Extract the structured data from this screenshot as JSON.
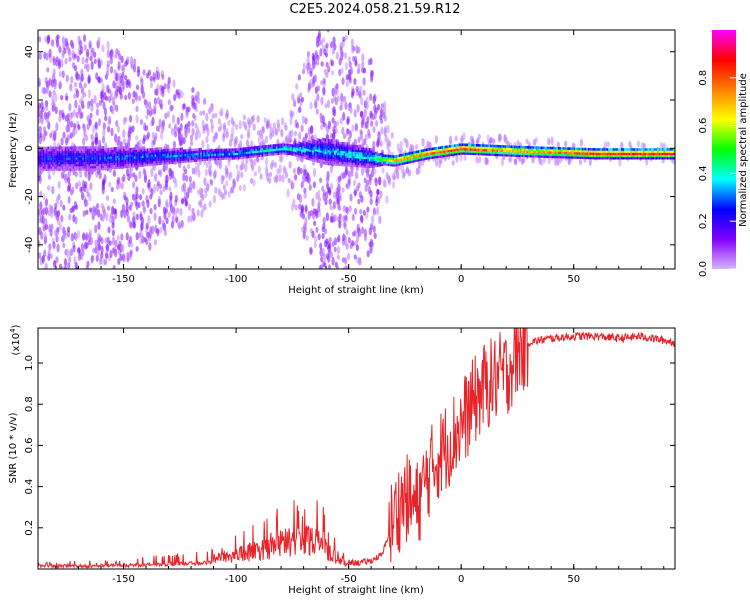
{
  "figure": {
    "title": "C2E5.2024.058.21.59.R12"
  },
  "chart_data": [
    {
      "type": "heatmap",
      "panel": "top",
      "xlabel": "Height of straight line (km)",
      "ylabel": "Frequency (Hz)",
      "xlim": [
        -188,
        95
      ],
      "ylim": [
        -50,
        49
      ],
      "xticks": [
        -150,
        -100,
        -50,
        0,
        50
      ],
      "yticks": [
        -40,
        -20,
        0,
        20,
        40
      ],
      "colorbar": {
        "label": "Normalized spectral amplitude",
        "range": [
          0.0,
          1.0
        ],
        "ticks": [
          0.0,
          0.2,
          0.4,
          0.6,
          0.8
        ],
        "colormap": [
          "#d9b3ff",
          "#8000ff",
          "#0000ff",
          "#00ffff",
          "#00ff00",
          "#ffff00",
          "#ff8000",
          "#ff0000",
          "#ff00ff"
        ]
      },
      "ridge": [
        {
          "x": -188,
          "freq": -4,
          "amplitude": 0.25,
          "spread_hz": 40
        },
        {
          "x": -160,
          "freq": -4,
          "amplitude": 0.28,
          "spread_hz": 38
        },
        {
          "x": -130,
          "freq": -3,
          "amplitude": 0.32,
          "spread_hz": 25
        },
        {
          "x": -100,
          "freq": -2,
          "amplitude": 0.35,
          "spread_hz": 12
        },
        {
          "x": -80,
          "freq": 0,
          "amplitude": 0.45,
          "spread_hz": 10
        },
        {
          "x": -60,
          "freq": -1,
          "amplitude": 0.35,
          "spread_hz": 45
        },
        {
          "x": -40,
          "freq": -4,
          "amplitude": 0.42,
          "spread_hz": 30
        },
        {
          "x": -30,
          "freq": -5,
          "amplitude": 0.75,
          "spread_hz": 6
        },
        {
          "x": -15,
          "freq": -2,
          "amplitude": 0.85,
          "spread_hz": 5
        },
        {
          "x": 0,
          "freq": 0,
          "amplitude": 0.9,
          "spread_hz": 4
        },
        {
          "x": 25,
          "freq": -1,
          "amplitude": 0.75,
          "spread_hz": 4
        },
        {
          "x": 60,
          "freq": -2,
          "amplitude": 0.9,
          "spread_hz": 3
        },
        {
          "x": 95,
          "freq": -2,
          "amplitude": 0.95,
          "spread_hz": 3
        }
      ]
    },
    {
      "type": "line",
      "panel": "bottom",
      "xlabel": "Height of straight line (km)",
      "ylabel": "SNR (10 * v/v)",
      "yscale_label": "(x10",
      "yscale_exp": "4",
      "yscale_close": ")",
      "xlim": [
        -188,
        95
      ],
      "ylim": [
        0.0,
        1.17
      ],
      "xticks": [
        -150,
        -100,
        -50,
        0,
        50
      ],
      "yticks": [
        0.2,
        0.4,
        0.6,
        0.8,
        1.0
      ],
      "color": "#e8242a",
      "series": [
        {
          "x": [
            -188,
            -170,
            -150,
            -140,
            -130,
            -120,
            -110,
            -100,
            -90,
            -80,
            -75,
            -70,
            -65,
            -60,
            -55,
            -50,
            -45,
            -40,
            -35,
            -30,
            -25,
            -20,
            -15,
            -10,
            -5,
            0,
            5,
            10,
            15,
            20,
            25,
            30,
            40,
            50,
            60,
            70,
            80,
            90,
            95
          ],
          "y": [
            0.02,
            0.02,
            0.03,
            0.04,
            0.05,
            0.06,
            0.08,
            0.1,
            0.13,
            0.18,
            0.2,
            0.22,
            0.21,
            0.15,
            0.06,
            0.03,
            0.03,
            0.04,
            0.07,
            0.25,
            0.35,
            0.3,
            0.45,
            0.55,
            0.62,
            0.7,
            0.8,
            0.88,
            0.92,
            0.95,
            1.05,
            1.1,
            1.12,
            1.13,
            1.13,
            1.12,
            1.13,
            1.11,
            1.1
          ]
        }
      ]
    }
  ]
}
